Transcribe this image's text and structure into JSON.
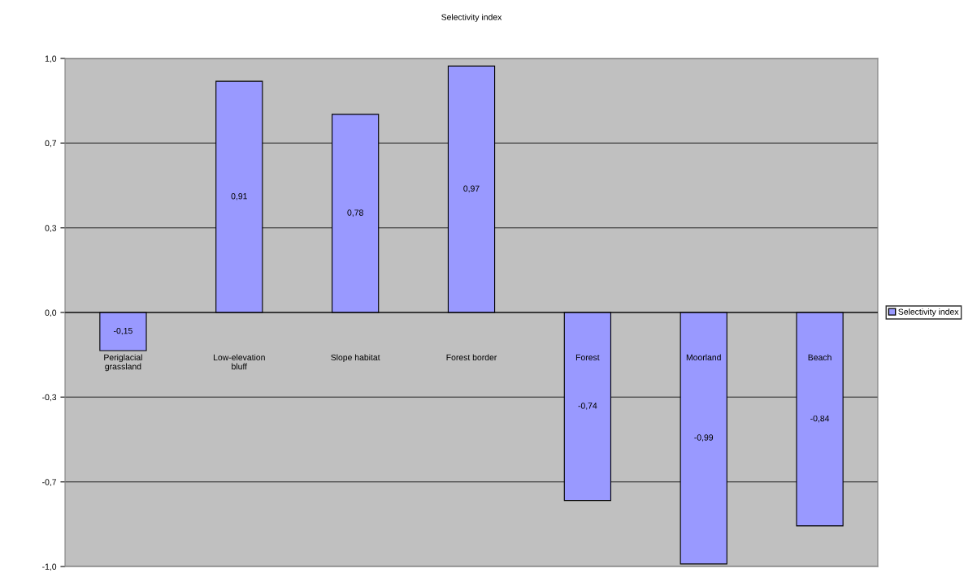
{
  "chart_data": {
    "type": "bar",
    "title": "Selectivity index",
    "categories": [
      "Periglacial\ngrassland",
      "Low-elevation\nbluff",
      "Slope habitat",
      "Forest border",
      "Forest",
      "Moorland",
      "Beach"
    ],
    "series": [
      {
        "name": "Selectivity index",
        "color": "#9999ff",
        "values": [
          -0.15,
          0.91,
          0.78,
          0.97,
          -0.74,
          -0.99,
          -0.84
        ],
        "value_labels": [
          "-0,15",
          "0,91",
          "0,78",
          "0,97",
          "-0,74",
          "-0,99",
          "-0,84"
        ]
      }
    ],
    "ylim": [
      -1.0,
      1.0
    ],
    "yticks": [
      {
        "value": 1.0,
        "label": "1,0"
      },
      {
        "value": 0.667,
        "label": "0,7"
      },
      {
        "value": 0.333,
        "label": "0,3"
      },
      {
        "value": 0.0,
        "label": "0,0"
      },
      {
        "value": -0.333,
        "label": "-0,3"
      },
      {
        "value": -0.667,
        "label": "-0,7"
      },
      {
        "value": -1.0,
        "label": "-1,0"
      }
    ],
    "grid": "y",
    "legend": "right"
  }
}
